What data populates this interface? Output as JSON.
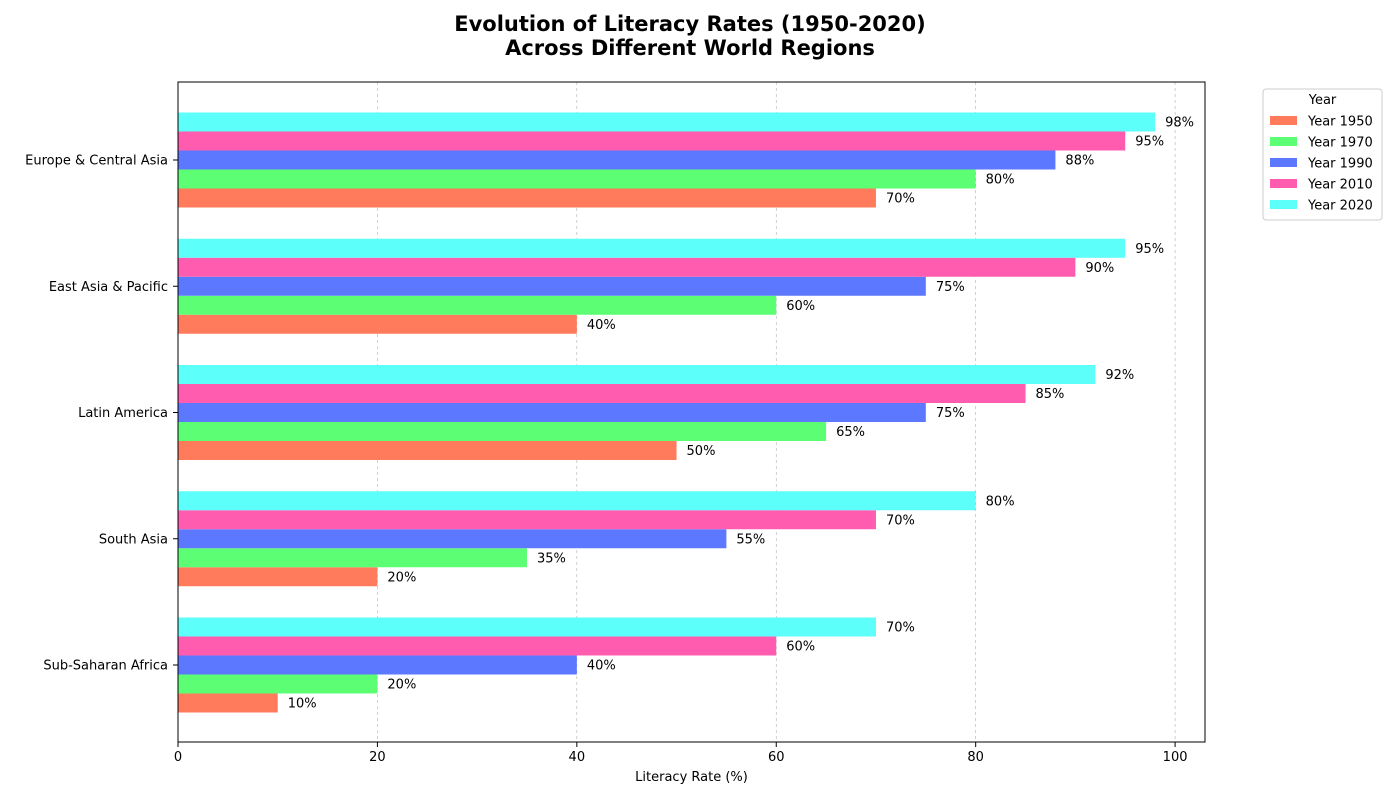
{
  "chart_data": {
    "type": "bar",
    "orientation": "horizontal",
    "title_lines": [
      "Evolution of Literacy Rates (1950-2020)",
      "Across Different World Regions"
    ],
    "xlabel": "Literacy Rate (%)",
    "ylabel": "",
    "xlim": [
      0,
      103
    ],
    "x_ticks": [
      0,
      20,
      40,
      60,
      80,
      100
    ],
    "grid": "vertical dashed",
    "categories": [
      "Sub-Saharan Africa",
      "South Asia",
      "Latin America",
      "East Asia & Pacific",
      "Europe & Central Asia"
    ],
    "series": [
      {
        "name": "Year 1950",
        "color": "#ff7b5c",
        "values": [
          10,
          20,
          50,
          40,
          70
        ]
      },
      {
        "name": "Year 1970",
        "color": "#5cff74",
        "values": [
          20,
          35,
          65,
          60,
          80
        ]
      },
      {
        "name": "Year 1990",
        "color": "#5c78ff",
        "values": [
          40,
          55,
          75,
          75,
          88
        ]
      },
      {
        "name": "Year 2010",
        "color": "#ff5cb0",
        "values": [
          60,
          70,
          85,
          90,
          95
        ]
      },
      {
        "name": "Year 2020",
        "color": "#5cfffa",
        "values": [
          70,
          80,
          92,
          95,
          98
        ]
      }
    ],
    "value_label_suffix": "%",
    "legend": {
      "title": "Year",
      "placement": "outside top-right"
    }
  }
}
